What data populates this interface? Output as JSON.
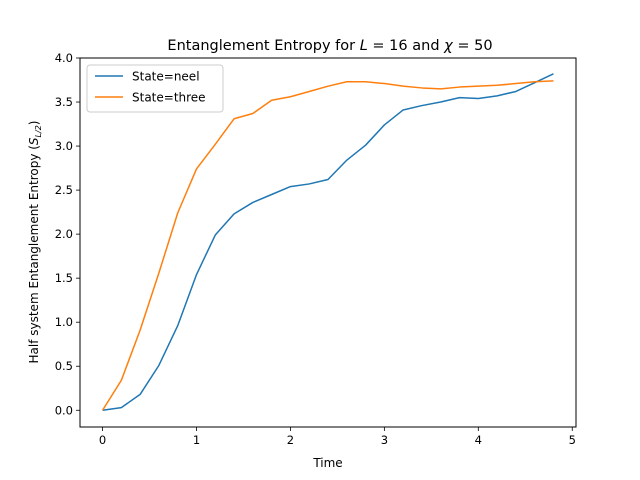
{
  "chart_data": {
    "type": "line",
    "title_prefix": "Entanglement Entropy for ",
    "title_L_var": "L",
    "title_L_val": " = 16 and ",
    "title_chi_var": "χ",
    "title_chi_val": " = 50",
    "xlabel": "Time",
    "ylabel_prefix": "Half system Entanglement Entropy (",
    "ylabel_S": "S",
    "ylabel_sub": "L/2",
    "ylabel_suffix": ")",
    "xlim": [
      -0.24,
      5.04
    ],
    "ylim": [
      -0.19,
      4.0
    ],
    "xticks": [
      0,
      1,
      2,
      3,
      4,
      5
    ],
    "xtick_labels": [
      "0",
      "1",
      "2",
      "3",
      "4",
      "5"
    ],
    "yticks": [
      0.0,
      0.5,
      1.0,
      1.5,
      2.0,
      2.5,
      3.0,
      3.5,
      4.0
    ],
    "ytick_labels": [
      "0.0",
      "0.5",
      "1.0",
      "1.5",
      "2.0",
      "2.5",
      "3.0",
      "3.5",
      "4.0"
    ],
    "legend_position": "top-left",
    "grid": false,
    "x": [
      0,
      0.2,
      0.4,
      0.6,
      0.8,
      1.0,
      1.2,
      1.4,
      1.6,
      1.8,
      2.0,
      2.2,
      2.4,
      2.6,
      2.8,
      3.0,
      3.2,
      3.4,
      3.6,
      3.8,
      4.0,
      4.2,
      4.4,
      4.6,
      4.8
    ],
    "series": [
      {
        "name": "State=neel",
        "color": "#1f77b4",
        "values": [
          0.0,
          0.03,
          0.18,
          0.51,
          0.96,
          1.54,
          1.99,
          2.23,
          2.36,
          2.45,
          2.54,
          2.57,
          2.62,
          2.84,
          3.01,
          3.24,
          3.41,
          3.46,
          3.5,
          3.55,
          3.54,
          3.57,
          3.62,
          3.72,
          3.82
        ]
      },
      {
        "name": "State=three",
        "color": "#ff7f0e",
        "values": [
          0.0,
          0.34,
          0.91,
          1.56,
          2.24,
          2.74,
          3.02,
          3.31,
          3.37,
          3.52,
          3.56,
          3.62,
          3.68,
          3.73,
          3.73,
          3.71,
          3.68,
          3.66,
          3.65,
          3.67,
          3.68,
          3.69,
          3.71,
          3.73,
          3.74
        ]
      }
    ]
  }
}
